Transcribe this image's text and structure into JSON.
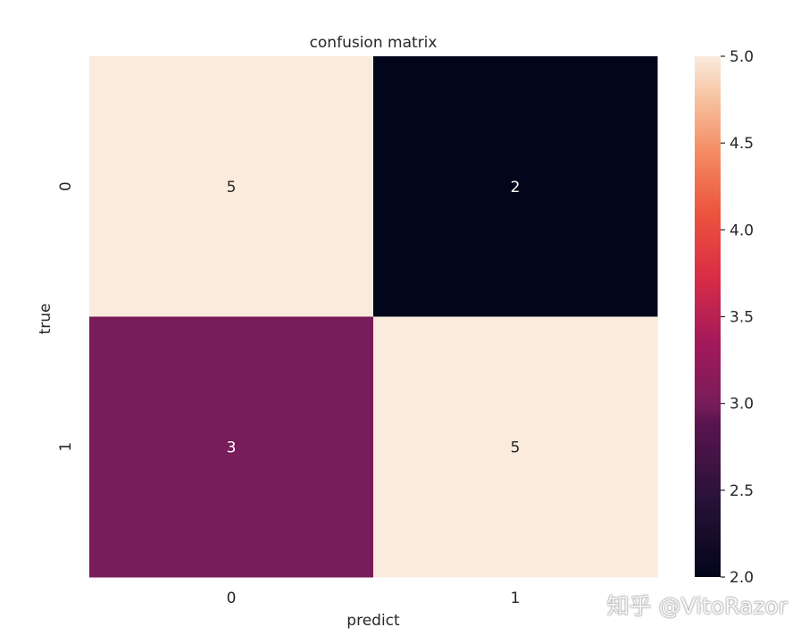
{
  "chart_data": {
    "type": "heatmap",
    "title": "confusion matrix",
    "xlabel": "predict",
    "ylabel": "true",
    "x_categories": [
      "0",
      "1"
    ],
    "y_categories": [
      "0",
      "1"
    ],
    "values": [
      [
        5,
        2
      ],
      [
        3,
        5
      ]
    ],
    "colorbar": {
      "range": [
        2.0,
        5.0
      ],
      "ticks": [
        "2.0",
        "2.5",
        "3.0",
        "3.5",
        "4.0",
        "4.5",
        "5.0"
      ],
      "colormap": "rocket"
    },
    "annotations": true,
    "grid": false
  },
  "watermark": "知乎 @VitoRazor"
}
